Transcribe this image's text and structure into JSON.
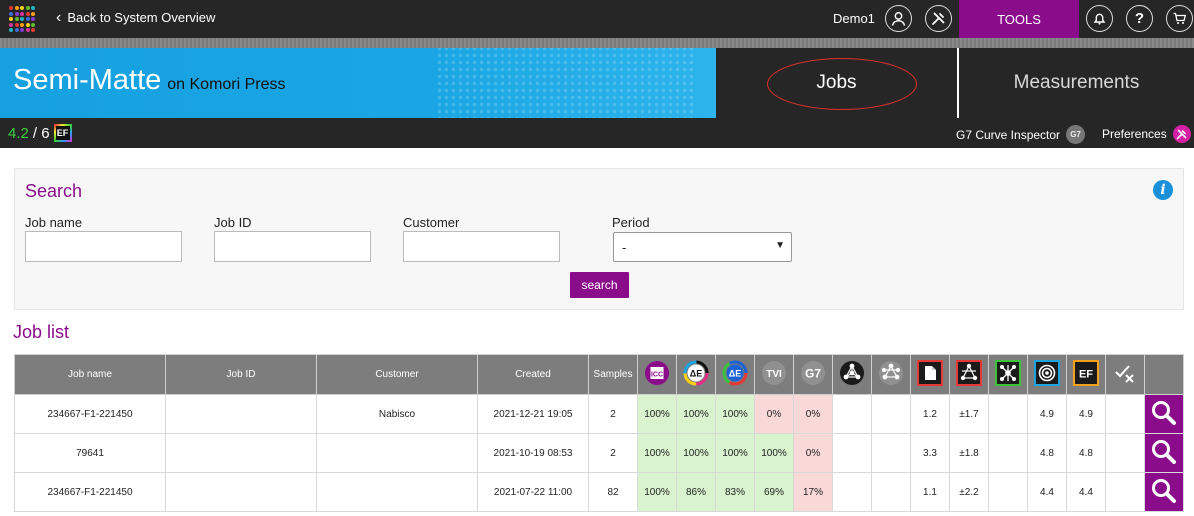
{
  "topbar": {
    "back_label": "Back to System Overview",
    "user": "Demo1",
    "tools_label": "TOOLS",
    "apps_colors": [
      "#e53935",
      "#f7a11a",
      "#f4d20f",
      "#5fbf2e",
      "#20b5c5",
      "#3a6fd8",
      "#8b3bd1",
      "#d4359c",
      "#e53935",
      "#f7a11a",
      "#f4d20f",
      "#5fbf2e",
      "#20b5c5",
      "#3a6fd8",
      "#8b3bd1",
      "#d4359c",
      "#e53935",
      "#f7a11a",
      "#f4d20f",
      "#5fbf2e",
      "#20b5c5",
      "#3a6fd8",
      "#8b3bd1",
      "#d4359c",
      "#e53935"
    ]
  },
  "header": {
    "title": "Semi-Matte",
    "subtitle": "on Komori Press",
    "tab_jobs": "Jobs",
    "tab_measurements": "Measurements"
  },
  "subbar": {
    "version_current": "4.2",
    "version_total": "/ 6",
    "ef_badge": "EF",
    "g7_label": "G7 Curve Inspector",
    "g7_chip": "G7",
    "preferences_label": "Preferences"
  },
  "search": {
    "title": "Search",
    "job_name_label": "Job name",
    "job_id_label": "Job ID",
    "customer_label": "Customer",
    "period_label": "Period",
    "job_name_value": "",
    "job_id_value": "",
    "customer_value": "",
    "period_value": "-",
    "button_label": "search"
  },
  "job_list": {
    "title": "Job list",
    "columns": {
      "job_name": "Job name",
      "job_id": "Job ID",
      "customer": "Customer",
      "created": "Created",
      "samples": "Samples"
    },
    "metric_icons": [
      {
        "name": "icc-icon",
        "text": "ICC",
        "bg": "#8a0c8a"
      },
      {
        "name": "delta-e-cmyk-icon",
        "text": "ΔE",
        "bg": "#ffffff"
      },
      {
        "name": "delta-e-rgb-icon",
        "text": "ΔE",
        "bg": "#1e63d6"
      },
      {
        "name": "tvi-icon",
        "text": "TVI",
        "bg": "#8f8f8f"
      },
      {
        "name": "g7-icon",
        "text": "G7",
        "bg": "#8f8f8f"
      },
      {
        "name": "spot-network-icon",
        "text": "",
        "bg": "#1a1a1a"
      },
      {
        "name": "network-grey-icon",
        "text": "",
        "bg": "#8f8f8f"
      },
      {
        "name": "document-icon",
        "text": "",
        "bg": "#1a1a1a"
      },
      {
        "name": "network-color-icon",
        "text": "",
        "bg": "#1a1a1a"
      },
      {
        "name": "spider-icon",
        "text": "",
        "bg": "#1a1a1a"
      },
      {
        "name": "target-icon",
        "text": "",
        "bg": "#1a1a1a"
      },
      {
        "name": "ef-icon",
        "text": "EF",
        "bg": "#1a1a1a"
      },
      {
        "name": "check-cross-icon",
        "text": "",
        "bg": "#7d7d7d"
      }
    ],
    "rows": [
      {
        "job_name": "234667-F1-221450",
        "job_id": "",
        "customer": "Nabisco",
        "created": "2021-12-21 19:05",
        "samples": "2",
        "icc": "100%",
        "de_cmyk": "100%",
        "de_rgb": "100%",
        "tvi": "0%",
        "g7": "0%",
        "m6": "",
        "m7": "",
        "m8": "1.2",
        "m9": "±1.7",
        "m10": "",
        "m11": "4.9",
        "m12": "4.9",
        "m13": ""
      },
      {
        "job_name": "79641",
        "job_id": "",
        "customer": "",
        "created": "2021-10-19 08:53",
        "samples": "2",
        "icc": "100%",
        "de_cmyk": "100%",
        "de_rgb": "100%",
        "tvi": "100%",
        "g7": "0%",
        "m6": "",
        "m7": "",
        "m8": "3.3",
        "m9": "±1.8",
        "m10": "",
        "m11": "4.8",
        "m12": "4.8",
        "m13": ""
      },
      {
        "job_name": "234667-F1-221450",
        "job_id": "",
        "customer": "",
        "created": "2021-07-22 11:00",
        "samples": "82",
        "icc": "100%",
        "de_cmyk": "86%",
        "de_rgb": "83%",
        "tvi": "69%",
        "g7": "17%",
        "m6": "",
        "m7": "",
        "m8": "1.1",
        "m9": "±2.2",
        "m10": "",
        "m11": "4.4",
        "m12": "4.4",
        "m13": ""
      }
    ],
    "cell_status": [
      [
        "g",
        "g",
        "g",
        "r",
        "r"
      ],
      [
        "g",
        "g",
        "g",
        "g",
        "r"
      ],
      [
        "g",
        "g",
        "g",
        "g",
        "r"
      ]
    ]
  }
}
